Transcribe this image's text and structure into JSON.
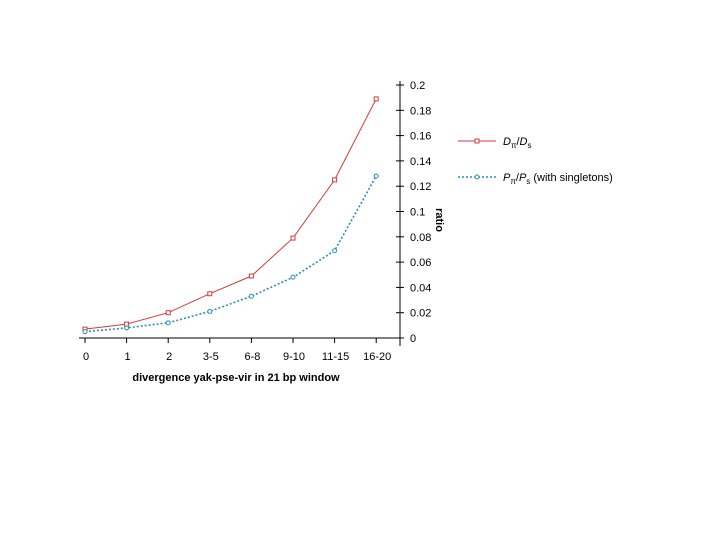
{
  "chart_data": {
    "type": "line",
    "title": "",
    "xlabel": "divergence yak-pse-vir in 21 bp window",
    "ylabel": "ratio",
    "categories": [
      "0",
      "1",
      "2",
      "3-5",
      "6-8",
      "9-10",
      "11-15",
      "16-20"
    ],
    "ylim": [
      0,
      0.2
    ],
    "yticks": [
      "0",
      "0.02",
      "0.04",
      "0.06",
      "0.08",
      "0.1",
      "0.12",
      "0.14",
      "0.16",
      "0.18",
      "0.2"
    ],
    "y_axis_side": "right",
    "grid": false,
    "legend_position": "right",
    "series": [
      {
        "name": "Dπ/Ds",
        "label": {
          "main1": "D",
          "sub1": "π",
          "sep": "/D",
          "sub2": "s",
          "suffix": ""
        },
        "color": "#d43a3a",
        "line_style": "solid",
        "marker": "square",
        "values": [
          0.007,
          0.011,
          0.02,
          0.035,
          0.049,
          0.079,
          0.125,
          0.189
        ]
      },
      {
        "name": "Pπ/Ps (with singletons)",
        "label": {
          "main1": "P",
          "sub1": "π",
          "sep": "/P",
          "sub2": "s",
          "suffix": " (with singletons)"
        },
        "color": "#2a8fb8",
        "line_style": "dotted",
        "marker": "circle",
        "values": [
          0.005,
          0.008,
          0.012,
          0.021,
          0.033,
          0.048,
          0.069,
          0.128
        ]
      }
    ]
  }
}
